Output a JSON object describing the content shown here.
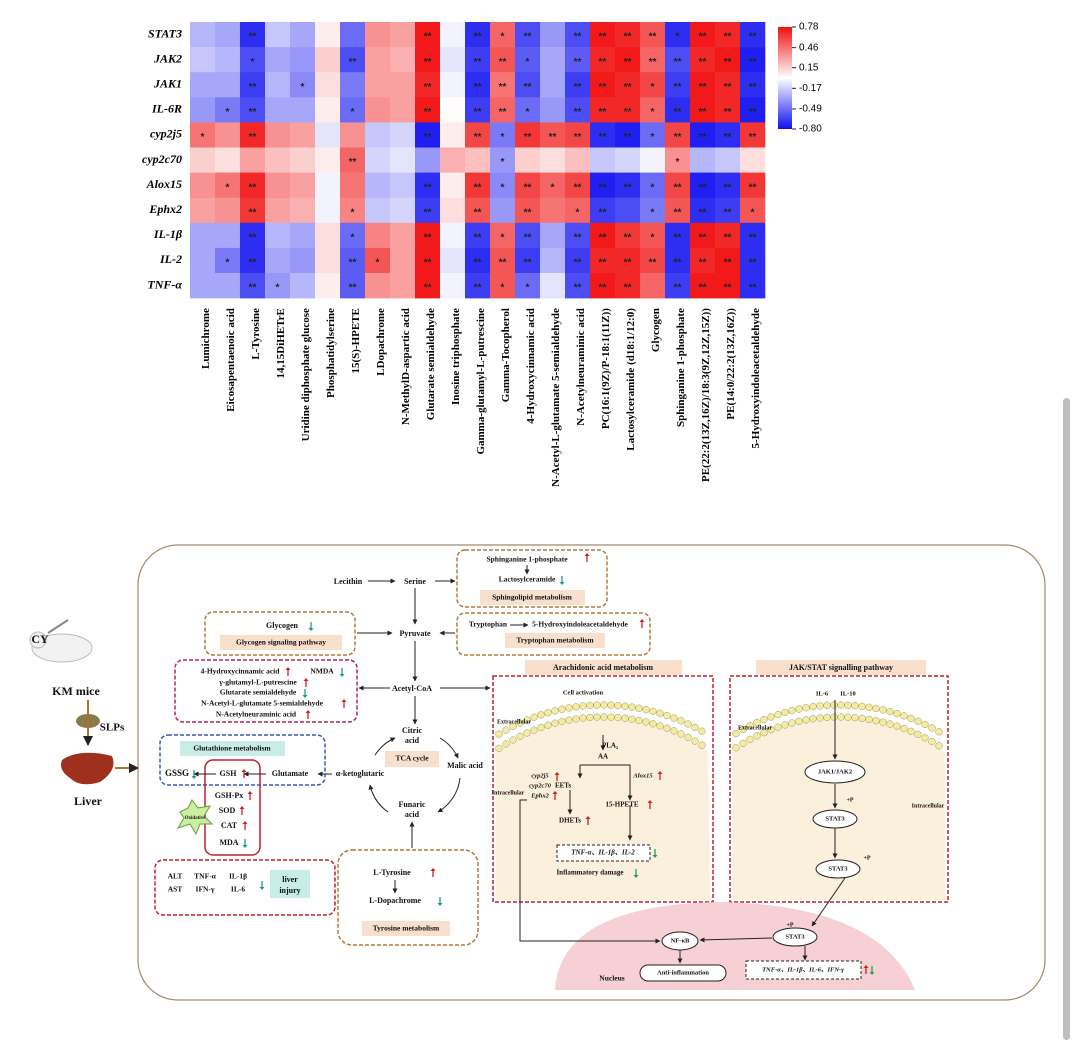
{
  "chart_data": {
    "type": "heatmap",
    "rows": [
      "STAT3",
      "JAK2",
      "JAK1",
      "IL-6R",
      "cyp2j5",
      "cyp2c70",
      "Alox15",
      "Ephx2",
      "IL-1β",
      "IL-2",
      "TNF-α"
    ],
    "columns": [
      "Lumichrome",
      "Eicosapentaenoic acid",
      "L-Tyrosine",
      "14,15DiHETrE",
      "Uridine diphosphate glucose",
      "Phosphatidylserine",
      "15(S)-HPETE",
      "LDopachrome",
      "N-MethylD-aspartic acid",
      "Glutarate semialdehyde",
      "Inosine triphosphate",
      "Gamma-glutamyl-L-putrescine",
      "Gamma-Tocopherol",
      "4-Hydroxycinnamic acid",
      "N-Acetyl-L-glutamate 5-semialdehyde",
      "N-Acetylneuraminic acid",
      "PC(16:1(9Z)/P-18:1(11Z))",
      "Lactosylceramide (d18:1/12:0)",
      "Glycogen",
      "Sphinganine 1-phosphate",
      "PE(22:2(13Z,16Z)/18:3(9Z,12Z,15Z))",
      "PE(14:0/22:2(13Z,16Z))",
      "5-Hydroxyindoleacetaldehyde"
    ],
    "values": [
      [
        -0.25,
        -0.3,
        -0.7,
        -0.2,
        -0.3,
        0.05,
        -0.5,
        0.35,
        0.3,
        0.75,
        -0.05,
        -0.7,
        0.5,
        -0.6,
        -0.35,
        -0.6,
        0.75,
        0.7,
        0.55,
        -0.7,
        0.75,
        0.7,
        -0.7
      ],
      [
        -0.2,
        -0.25,
        -0.6,
        -0.3,
        -0.35,
        0.15,
        -0.6,
        0.3,
        0.25,
        0.75,
        -0.1,
        -0.65,
        0.55,
        -0.55,
        -0.3,
        -0.55,
        0.7,
        0.75,
        0.5,
        -0.6,
        0.7,
        0.75,
        -0.75
      ],
      [
        -0.3,
        -0.3,
        -0.65,
        -0.25,
        -0.4,
        0.1,
        -0.45,
        0.3,
        0.3,
        0.7,
        -0.05,
        -0.7,
        0.45,
        -0.6,
        -0.3,
        -0.65,
        0.75,
        0.7,
        0.6,
        -0.65,
        0.75,
        0.7,
        -0.7
      ],
      [
        -0.35,
        -0.45,
        -0.6,
        -0.3,
        -0.3,
        0.05,
        -0.5,
        0.35,
        0.3,
        0.75,
        0,
        -0.65,
        0.5,
        -0.5,
        -0.35,
        -0.6,
        0.7,
        0.7,
        0.5,
        -0.7,
        0.75,
        0.7,
        -0.75
      ],
      [
        0.45,
        0.35,
        0.7,
        0.35,
        0.3,
        -0.1,
        0.35,
        -0.2,
        -0.15,
        -0.75,
        0.05,
        0.6,
        -0.45,
        0.65,
        0.55,
        0.6,
        -0.7,
        -0.75,
        -0.5,
        0.6,
        -0.75,
        -0.7,
        0.65
      ],
      [
        0.15,
        0.1,
        0.3,
        0.2,
        0.15,
        0.05,
        0.5,
        -0.15,
        -0.1,
        -0.35,
        0.25,
        0.2,
        -0.35,
        0.15,
        0.1,
        0.2,
        -0.2,
        -0.15,
        -0.05,
        0.35,
        -0.25,
        -0.2,
        0.1
      ],
      [
        0.35,
        0.45,
        0.7,
        0.35,
        0.3,
        -0.05,
        0.45,
        -0.25,
        -0.2,
        -0.7,
        0.05,
        0.65,
        -0.4,
        0.6,
        0.5,
        0.6,
        -0.75,
        -0.7,
        -0.5,
        0.6,
        -0.75,
        -0.7,
        0.65
      ],
      [
        0.3,
        0.35,
        0.65,
        0.3,
        0.25,
        -0.05,
        0.4,
        -0.2,
        -0.15,
        -0.65,
        0.1,
        0.55,
        -0.35,
        0.55,
        0.45,
        0.5,
        -0.65,
        -0.6,
        -0.45,
        0.55,
        -0.7,
        -0.65,
        0.55
      ],
      [
        -0.3,
        -0.3,
        -0.7,
        -0.25,
        -0.3,
        0.1,
        -0.5,
        0.4,
        0.3,
        0.75,
        -0.05,
        -0.65,
        0.5,
        -0.6,
        -0.3,
        -0.6,
        0.75,
        0.65,
        0.55,
        -0.7,
        0.75,
        0.7,
        -0.7
      ],
      [
        -0.3,
        -0.45,
        -0.7,
        -0.3,
        -0.35,
        0.1,
        -0.55,
        0.55,
        0.3,
        0.75,
        -0.1,
        -0.7,
        0.55,
        -0.65,
        -0.25,
        -0.65,
        0.7,
        0.7,
        0.6,
        -0.7,
        0.7,
        0.75,
        -0.7
      ],
      [
        -0.3,
        -0.3,
        -0.6,
        -0.35,
        -0.25,
        0.05,
        -0.55,
        0.35,
        0.3,
        0.75,
        -0.05,
        -0.65,
        0.55,
        -0.5,
        -0.1,
        -0.6,
        0.75,
        0.7,
        0.5,
        -0.65,
        0.75,
        0.75,
        -0.7
      ]
    ],
    "stars": [
      [
        null,
        null,
        "**",
        null,
        null,
        null,
        null,
        null,
        null,
        "**",
        null,
        "**",
        "*",
        "**",
        null,
        "**",
        "**",
        "**",
        "**",
        "*",
        "**",
        "**",
        "**"
      ],
      [
        null,
        null,
        "*",
        null,
        null,
        null,
        "**",
        null,
        null,
        "**",
        null,
        "**",
        "**",
        "*",
        null,
        "**",
        "**",
        "**",
        "**",
        "**",
        "**",
        "**",
        "**"
      ],
      [
        null,
        null,
        "**",
        null,
        "*",
        null,
        null,
        null,
        null,
        "**",
        null,
        "**",
        "**",
        "**",
        null,
        "**",
        "**",
        "**",
        "*",
        "**",
        "**",
        "**",
        "**"
      ],
      [
        null,
        "*",
        "**",
        null,
        null,
        null,
        "*",
        null,
        null,
        "**",
        null,
        "**",
        "**",
        "*",
        null,
        "**",
        "**",
        "**",
        "*",
        "**",
        "**",
        "**",
        "**"
      ],
      [
        "*",
        null,
        "**",
        null,
        null,
        null,
        null,
        null,
        null,
        "**",
        null,
        "**",
        "*",
        "**",
        "**",
        "**",
        "**",
        "**",
        "*",
        "**",
        "**",
        "**",
        "**"
      ],
      [
        null,
        null,
        null,
        null,
        null,
        null,
        "**",
        null,
        null,
        null,
        null,
        null,
        "*",
        null,
        null,
        null,
        null,
        null,
        null,
        "*",
        null,
        null,
        null
      ],
      [
        null,
        "*",
        "**",
        null,
        null,
        null,
        null,
        null,
        null,
        "**",
        null,
        "**",
        "*",
        "**",
        "*",
        "**",
        "**",
        "**",
        "*",
        "**",
        "**",
        "**",
        "**"
      ],
      [
        null,
        null,
        "**",
        null,
        null,
        null,
        "*",
        null,
        null,
        "**",
        null,
        "**",
        null,
        "**",
        null,
        "*",
        "**",
        null,
        "*",
        "**",
        "**",
        "**",
        "*"
      ],
      [
        null,
        null,
        "**",
        null,
        null,
        null,
        "*",
        null,
        null,
        "**",
        null,
        "**",
        "*",
        "**",
        null,
        "**",
        "**",
        "**",
        "*",
        "**",
        "**",
        "**",
        "**"
      ],
      [
        null,
        "*",
        "**",
        null,
        null,
        null,
        "**",
        "*",
        null,
        "**",
        null,
        "**",
        "**",
        "**",
        null,
        "**",
        "**",
        "**",
        "**",
        "**",
        "**",
        "**",
        "**"
      ],
      [
        null,
        null,
        "**",
        "*",
        null,
        null,
        "**",
        null,
        null,
        "**",
        null,
        "**",
        "*",
        "*",
        null,
        "**",
        "**",
        "**",
        null,
        "**",
        "**",
        "**",
        "**"
      ]
    ],
    "zlim": [
      -0.8,
      0.78
    ],
    "zticks": [
      0.78,
      0.46,
      0.15,
      -0.17,
      -0.49,
      {
        "value": -0.8,
        "label": "-0.80"
      }
    ],
    "colors": [
      "#1010f0",
      "#ffffff",
      "#f01010"
    ]
  },
  "diagram": {
    "texts": [
      "CY",
      "KM mice",
      "SLPs",
      "Liver",
      "Lecithin",
      "Serine",
      "Sphinganine 1-phosphate",
      "Lactosylceramide",
      "Sphingolipid metabolism",
      "Glycogen",
      "Glycogen signaling pathway",
      "Pyruvate",
      "Tryptophan",
      "5-Hydroxyindoleacetaldehyde",
      "Tryptophan metabolism",
      "4-Hydroxycinnamic acid",
      "NMDA",
      "γ-glutamyl-L-putrescine",
      "Glutarate semialdehyde",
      "N-Acetyl-L-glutamate 5-semialdehyde",
      "N-Acetylneuraminic acid",
      "Acetyl-CoA",
      "Citric",
      "acid",
      "Glutathione metabolism",
      "GSSG",
      "GSH",
      "Glutamate",
      "α-ketoglutaric",
      "TCA cycle",
      "Malic acid",
      "GSH-Px",
      "SOD",
      "CAT",
      "MDA",
      "Oxidative",
      "Funaric",
      "acid",
      "ALT",
      "TNF-α",
      "IL-1β",
      "AST",
      "IFN-γ",
      "IL-6",
      "liver",
      "injury",
      "L-Tyrosine",
      "L-Dopachrome",
      "Tyrosine metabolism",
      "Arachidonic acid metabolism",
      "Cell activation",
      "Extracellular",
      "PLA₂",
      "AA",
      "cyp2j5",
      "cyp2c70",
      "Alox15",
      "Intracellular",
      "Ephx2",
      "EETs",
      "15-HPETE",
      "DHETs",
      "TNF-α、IL-1β、IL-2",
      "Inflammatory damage",
      "JAK/STAT signalling pathway",
      "Extracellular",
      "IL-6",
      "IL-10",
      "JAK1/JAK2",
      "+P",
      "STAT3",
      "Intracellular",
      "STAT3",
      "+P",
      "NF-κB",
      "+P",
      "STAT3",
      "Anti-inflammation",
      "Nucleus",
      "TNF-α、IL-1β、IL-6、IFN-γ"
    ]
  }
}
